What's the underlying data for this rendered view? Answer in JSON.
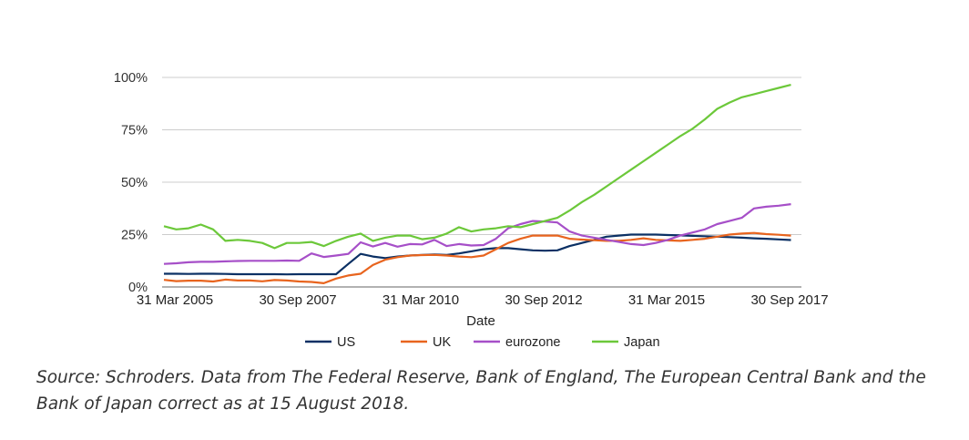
{
  "chart_data": {
    "type": "line",
    "title": "",
    "xlabel": "Date",
    "ylabel": "",
    "ylim": [
      0,
      100
    ],
    "yticks": [
      "0%",
      "25%",
      "50%",
      "75%",
      "100%"
    ],
    "ytick_values": [
      0,
      25,
      50,
      75,
      100
    ],
    "xticks": [
      "31 Mar 2005",
      "30 Sep 2007",
      "31 Mar 2010",
      "30 Sep 2012",
      "31 Mar 2015",
      "30 Sep 2017"
    ],
    "xtick_index": [
      0,
      10,
      20,
      30,
      40,
      50
    ],
    "x_frequency": "quarterly",
    "grid": true,
    "legend_position": "bottom",
    "series": [
      {
        "name": "US",
        "color": "#0b3064",
        "values": [
          6.3,
          6.3,
          6.2,
          6.3,
          6.3,
          6.2,
          6.1,
          6.1,
          6.1,
          6.1,
          6.0,
          6.1,
          6.1,
          6.1,
          6.1,
          11,
          15.8,
          14.5,
          13.8,
          14.5,
          15,
          15.3,
          15.5,
          15.3,
          16,
          17,
          18,
          18.5,
          18.5,
          18,
          17.5,
          17.3,
          17.5,
          19.5,
          21,
          22.5,
          24,
          24.5,
          25,
          25,
          25,
          24.8,
          24.6,
          24.4,
          24.2,
          24,
          23.8,
          23.5,
          23.2,
          23,
          22.7,
          22.4
        ]
      },
      {
        "name": "UK",
        "color": "#e8641e",
        "values": [
          3.4,
          2.8,
          3,
          3,
          2.6,
          3.5,
          3.1,
          3.1,
          2.7,
          3.3,
          3.1,
          2.6,
          2.4,
          1.8,
          4,
          5.5,
          6.3,
          10.5,
          13,
          14.2,
          15,
          15.2,
          15.3,
          15,
          14.5,
          14.2,
          15,
          18,
          21,
          23,
          24.5,
          24.5,
          24.5,
          23,
          22.6,
          22.3,
          22,
          22,
          22.5,
          23.2,
          22.5,
          22.2,
          22,
          22.5,
          23,
          24,
          25,
          25.5,
          25.8,
          25.2,
          24.9,
          24.5
        ]
      },
      {
        "name": "eurozone",
        "color": "#a64fc8",
        "values": [
          11,
          11.3,
          11.8,
          12,
          12,
          12.2,
          12.4,
          12.5,
          12.5,
          12.5,
          12.6,
          12.5,
          16,
          14.3,
          15,
          15.8,
          21.3,
          19.3,
          21,
          19.2,
          20.5,
          20.3,
          22.5,
          19.5,
          20.5,
          19.8,
          20,
          23,
          28,
          30,
          31.5,
          31.2,
          30.8,
          26.5,
          24.5,
          23.5,
          22.5,
          21.5,
          20.5,
          20,
          21,
          22.5,
          24.5,
          26,
          27.5,
          30,
          31.5,
          33,
          37.5,
          38.3,
          38.8,
          39.5
        ]
      },
      {
        "name": "Japan",
        "color": "#6cc83a",
        "values": [
          29,
          27.5,
          28,
          29.8,
          27.5,
          22,
          22.5,
          22,
          21,
          18.5,
          21,
          21,
          21.5,
          19.5,
          22,
          24,
          25.5,
          22,
          23.5,
          24.5,
          24.5,
          22.8,
          23.5,
          25.5,
          28.5,
          26.5,
          27.5,
          28,
          29,
          28.5,
          30,
          31.5,
          33,
          36.5,
          40.5,
          44,
          48,
          52,
          56,
          60,
          64,
          68,
          72,
          75.5,
          80,
          85,
          88,
          90.5,
          92,
          93.5,
          95,
          96.5
        ]
      }
    ]
  },
  "caption": "Source: Schroders. Data from The Federal Reserve, Bank of England, The European Central Bank and the Bank of Japan correct as at 15 August 2018."
}
